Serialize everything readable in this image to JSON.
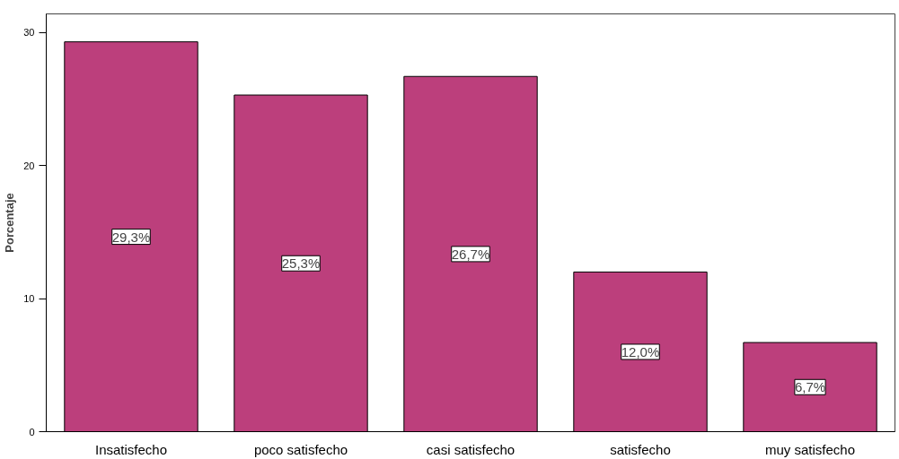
{
  "chart_data": {
    "type": "bar",
    "ylabel": "Porcentaje",
    "categories": [
      "Insatisfecho",
      "poco satisfecho",
      "casi satisfecho",
      "satisfecho",
      "muy satisfecho"
    ],
    "values": [
      29.3,
      25.3,
      26.7,
      12.0,
      6.7
    ],
    "value_labels": [
      "29,3%",
      "25,3%",
      "26,7%",
      "12,0%",
      "6,7%"
    ],
    "color": "#bc3f7c",
    "ylim": [
      0,
      31.4
    ],
    "yticks": [
      0,
      10,
      20,
      30
    ],
    "grid": false
  }
}
